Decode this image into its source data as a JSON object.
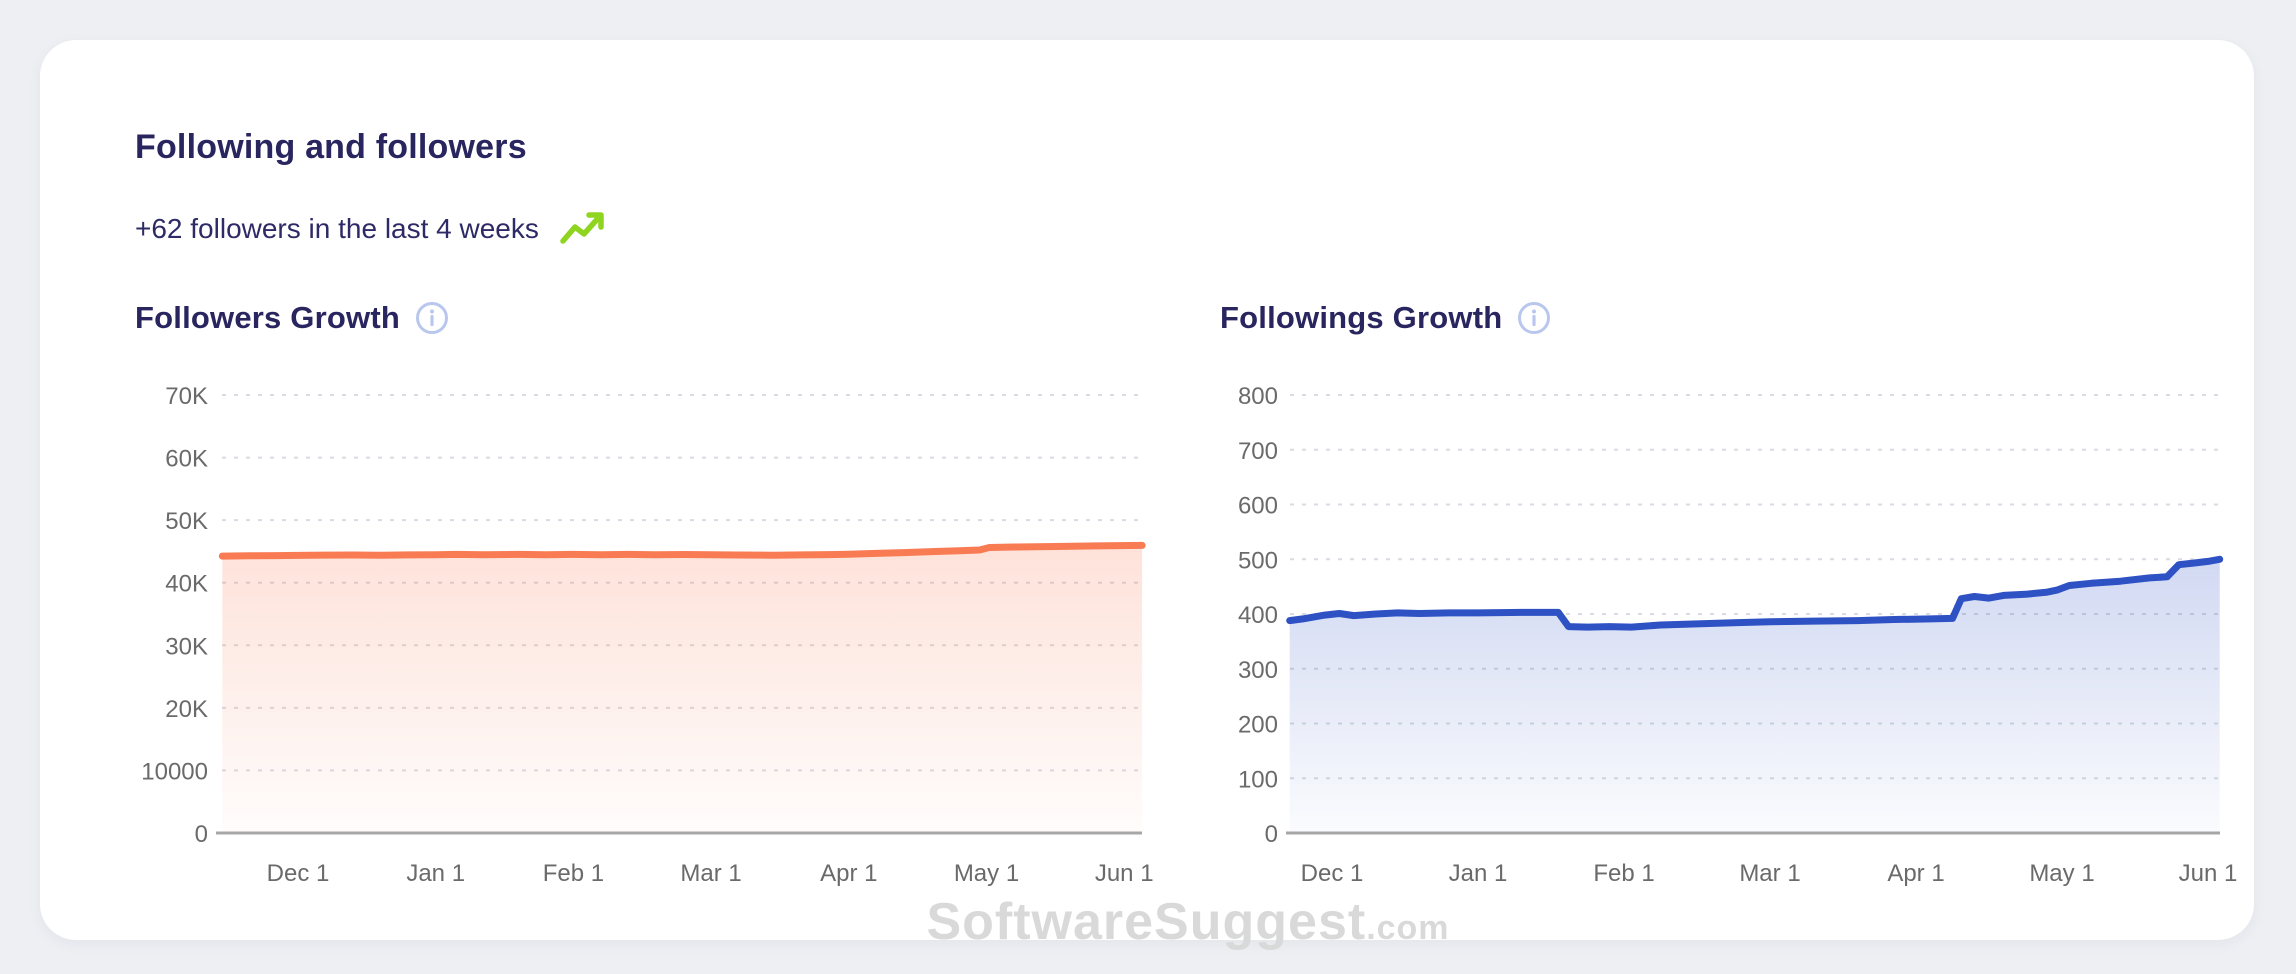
{
  "page": {
    "title": "Following and followers",
    "subtitle": "+62 followers in the last 4 weeks",
    "watermark": {
      "main": "SoftwareSuggest",
      "suffix": ".com"
    }
  },
  "colors": {
    "page_bg": "#edeff3",
    "card_bg": "#ffffff",
    "title_navy": "#29255f",
    "subtitle_navy": "#2d2a66",
    "trend_green": "#8fd41f",
    "info_icon_blue": "#b9c7ee",
    "gridline": "#d8dbe3",
    "axis": "#a7a7a7",
    "tick_text": "#6a6a6a",
    "accent_orange": "#f87b54",
    "accent_blue": "#2e51c4",
    "watermark_gray": "#d9d9d9"
  },
  "chart_data": [
    {
      "type": "area",
      "title": "Followers Growth",
      "series_name": "Followers",
      "x_unit": "months from Dec 1",
      "x_ticks": [
        "Dec 1",
        "Jan 1",
        "Feb 1",
        "Mar 1",
        "Apr 1",
        "May 1",
        "Jun 1"
      ],
      "y_tick_labels": [
        "70K",
        "60K",
        "50K",
        "40K",
        "30K",
        "20K",
        "10000",
        "0"
      ],
      "ylim": [
        0,
        70000
      ],
      "grid": "dashed-horizontal",
      "legend": "none",
      "line_color": "#f87b54",
      "fill_color": "#f87b54",
      "x": [
        -0.55,
        -0.35,
        -0.15,
        0,
        0.2,
        0.4,
        0.6,
        0.8,
        1.0,
        1.15,
        1.35,
        1.6,
        1.8,
        2.0,
        2.2,
        2.4,
        2.6,
        2.8,
        3.0,
        3.2,
        3.45,
        3.65,
        3.85,
        4.0,
        4.2,
        4.4,
        4.6,
        4.8,
        4.95,
        5.02,
        5.2,
        5.5,
        5.8,
        6.13
      ],
      "values": [
        44250,
        44300,
        44340,
        44370,
        44410,
        44430,
        44400,
        44450,
        44480,
        44520,
        44470,
        44520,
        44480,
        44530,
        44480,
        44520,
        44470,
        44510,
        44460,
        44430,
        44390,
        44440,
        44500,
        44560,
        44680,
        44820,
        44980,
        45120,
        45230,
        45620,
        45700,
        45790,
        45880,
        45960
      ]
    },
    {
      "type": "area",
      "title": "Followings Growth",
      "series_name": "Followings",
      "x_unit": "months from Dec 1",
      "x_ticks": [
        "Dec 1",
        "Jan 1",
        "Feb 1",
        "Mar 1",
        "Apr 1",
        "May 1",
        "Jun 1"
      ],
      "y_tick_labels": [
        "800",
        "700",
        "600",
        "500",
        "400",
        "300",
        "200",
        "100",
        "0"
      ],
      "ylim": [
        0,
        800
      ],
      "grid": "dashed-horizontal",
      "legend": "none",
      "line_color": "#2e51c4",
      "fill_color": "#2e51c4",
      "x": [
        -0.29,
        -0.2,
        -0.05,
        0.05,
        0.15,
        0.3,
        0.45,
        0.6,
        0.8,
        1.0,
        1.3,
        1.55,
        1.62,
        1.75,
        1.9,
        2.05,
        2.25,
        2.5,
        2.75,
        3.0,
        3.3,
        3.6,
        3.85,
        4.1,
        4.25,
        4.31,
        4.4,
        4.5,
        4.6,
        4.75,
        4.9,
        4.97,
        5.05,
        5.2,
        5.4,
        5.6,
        5.72,
        5.8,
        5.9,
        6.0,
        6.08
      ],
      "values": [
        388,
        391,
        398,
        401,
        397,
        400,
        402,
        401,
        402,
        402,
        403,
        403,
        377,
        376,
        377,
        376,
        380,
        382,
        384,
        386,
        387,
        388,
        390,
        391,
        392,
        428,
        432,
        429,
        434,
        436,
        440,
        444,
        452,
        456,
        460,
        466,
        468,
        490,
        493,
        496,
        500
      ]
    }
  ]
}
